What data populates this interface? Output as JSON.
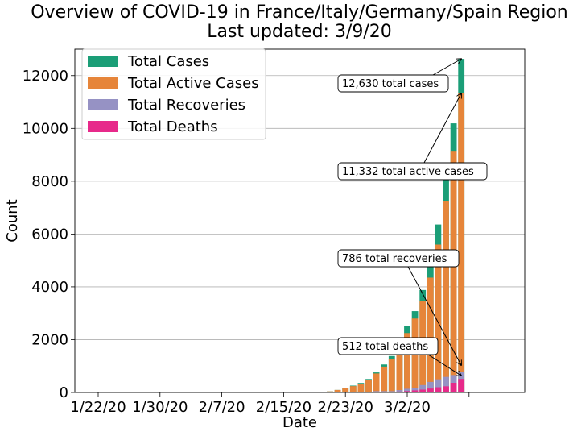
{
  "chart_data": {
    "type": "bar",
    "title": "Overview of COVID-19 in France/Italy/Germany/Spain Region",
    "subtitle": "Last updated: 3/9/20",
    "xlabel": "Date",
    "ylabel": "Count",
    "ylim": [
      0,
      13000
    ],
    "yticks": [
      0,
      2000,
      4000,
      6000,
      8000,
      10000,
      12000
    ],
    "xtick_labels": [
      "1/22/20",
      "1/30/20",
      "2/7/20",
      "2/15/20",
      "2/23/20",
      "3/2/20",
      ""
    ],
    "xtick_indices": [
      0,
      8,
      16,
      24,
      32,
      40,
      48
    ],
    "grid": "y",
    "legend_position": "top-left",
    "dates": [
      "1/22/20",
      "1/23/20",
      "1/24/20",
      "1/25/20",
      "1/26/20",
      "1/27/20",
      "1/28/20",
      "1/29/20",
      "1/30/20",
      "1/31/20",
      "2/1/20",
      "2/2/20",
      "2/3/20",
      "2/4/20",
      "2/5/20",
      "2/6/20",
      "2/7/20",
      "2/8/20",
      "2/9/20",
      "2/10/20",
      "2/11/20",
      "2/12/20",
      "2/13/20",
      "2/14/20",
      "2/15/20",
      "2/16/20",
      "2/17/20",
      "2/18/20",
      "2/19/20",
      "2/20/20",
      "2/21/20",
      "2/22/20",
      "2/23/20",
      "2/24/20",
      "2/25/20",
      "2/26/20",
      "2/27/20",
      "2/28/20",
      "2/29/20",
      "3/1/20",
      "3/2/20",
      "3/3/20",
      "3/4/20",
      "3/5/20",
      "3/6/20",
      "3/7/20",
      "3/8/20",
      "3/9/20"
    ],
    "series": [
      {
        "name": "Total Cases",
        "color": "#1b9e77",
        "values": [
          0,
          0,
          0,
          0,
          0,
          0,
          0,
          0,
          5,
          7,
          8,
          13,
          13,
          15,
          15,
          16,
          18,
          20,
          20,
          21,
          21,
          21,
          21,
          22,
          23,
          23,
          23,
          24,
          24,
          26,
          39,
          95,
          176,
          260,
          360,
          510,
          760,
          1060,
          1380,
          2050,
          2520,
          3080,
          3880,
          4960,
          6360,
          8150,
          10190,
          12630
        ]
      },
      {
        "name": "Total Active Cases",
        "color": "#e6853a",
        "values": [
          0,
          0,
          0,
          0,
          0,
          0,
          0,
          0,
          5,
          7,
          8,
          13,
          13,
          15,
          15,
          16,
          18,
          20,
          20,
          21,
          21,
          21,
          21,
          22,
          23,
          23,
          23,
          24,
          24,
          26,
          39,
          95,
          160,
          240,
          330,
          470,
          720,
          980,
          1250,
          1800,
          2250,
          2800,
          3450,
          4350,
          5600,
          7250,
          9150,
          11332
        ]
      },
      {
        "name": "Total Recoveries",
        "color": "#9692c4",
        "values": [
          0,
          0,
          0,
          0,
          0,
          0,
          0,
          0,
          0,
          0,
          0,
          0,
          0,
          0,
          0,
          0,
          0,
          0,
          0,
          0,
          0,
          0,
          0,
          2,
          2,
          2,
          2,
          4,
          4,
          4,
          4,
          4,
          4,
          6,
          6,
          10,
          50,
          50,
          50,
          90,
          140,
          160,
          280,
          400,
          500,
          590,
          660,
          786
        ]
      },
      {
        "name": "Total Deaths",
        "color": "#e7298a",
        "values": [
          0,
          0,
          0,
          0,
          0,
          0,
          0,
          0,
          0,
          0,
          0,
          0,
          0,
          0,
          0,
          0,
          0,
          0,
          0,
          0,
          0,
          0,
          0,
          0,
          0,
          0,
          0,
          0,
          0,
          0,
          0,
          0,
          2,
          5,
          10,
          12,
          17,
          21,
          29,
          34,
          52,
          79,
          107,
          148,
          197,
          233,
          366,
          512
        ]
      }
    ],
    "annotations": [
      {
        "text": "12,630 total cases",
        "series": 0
      },
      {
        "text": "11,332 total active cases",
        "series": 1
      },
      {
        "text": "786 total recoveries",
        "series": 2
      },
      {
        "text": "512 total deaths",
        "series": 3
      }
    ]
  }
}
